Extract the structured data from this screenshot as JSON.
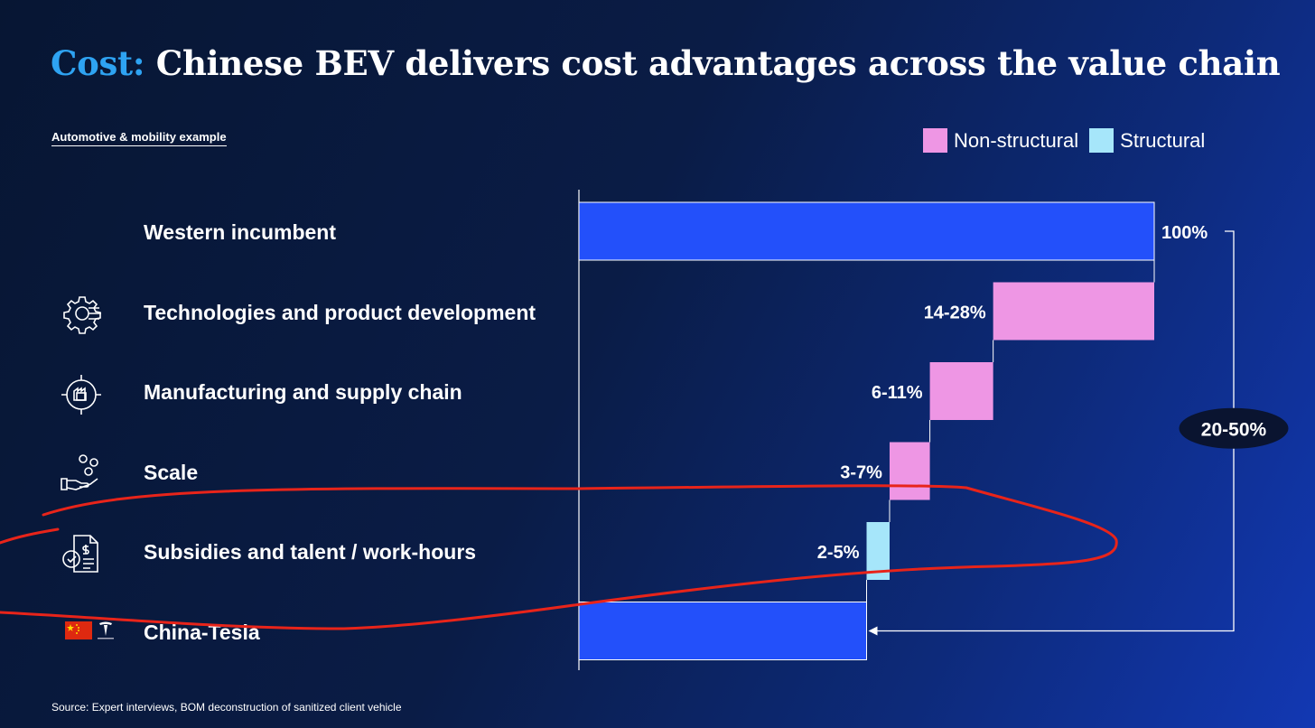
{
  "header": {
    "title_accent": "Cost:",
    "title_rest": " Chinese BEV delivers cost advantages across the value chain",
    "subtitle": "Automotive & mobility example"
  },
  "legend": [
    {
      "label": "Non-structural",
      "color": "#ee96e4"
    },
    {
      "label": "Structural",
      "color": "#a6e6fa"
    }
  ],
  "rows": [
    {
      "label": "Western incumbent",
      "icon": "none"
    },
    {
      "label": "Technologies and product development",
      "icon": "gear-circuit-icon"
    },
    {
      "label": "Manufacturing and supply chain",
      "icon": "factory-target-icon"
    },
    {
      "label": "Scale",
      "icon": "hand-coins-icon"
    },
    {
      "label": "Subsidies and talent / work-hours",
      "icon": "document-check-icon"
    },
    {
      "label": "China-Tesla",
      "icon": "china-flag-tesla-icon"
    }
  ],
  "chart_data": {
    "type": "waterfall",
    "categories": [
      "Western incumbent",
      "Technologies and product development",
      "Manufacturing and supply chain",
      "Scale",
      "Subsidies and talent / work-hours",
      "China-Tesla"
    ],
    "bars": [
      {
        "kind": "total",
        "start": 0,
        "end": 100,
        "label": "100%",
        "color": "#2350fa"
      },
      {
        "kind": "non-structural",
        "start": 72,
        "end": 100,
        "label": "14-28%",
        "color": "#ee96e4"
      },
      {
        "kind": "non-structural",
        "start": 61,
        "end": 72,
        "label": "6-11%",
        "color": "#ee96e4"
      },
      {
        "kind": "non-structural",
        "start": 54,
        "end": 61,
        "label": "3-7%",
        "color": "#ee96e4"
      },
      {
        "kind": "structural",
        "start": 50,
        "end": 54,
        "label": "2-5%",
        "color": "#a6e6fa"
      },
      {
        "kind": "total",
        "start": 0,
        "end": 50,
        "label": "",
        "color": "#2350fa"
      }
    ],
    "total_saving_label": "20-50%",
    "xlim": [
      0,
      100
    ]
  },
  "footer": {
    "source": "Source: Expert interviews, BOM deconstruction of sanitized client vehicle"
  }
}
